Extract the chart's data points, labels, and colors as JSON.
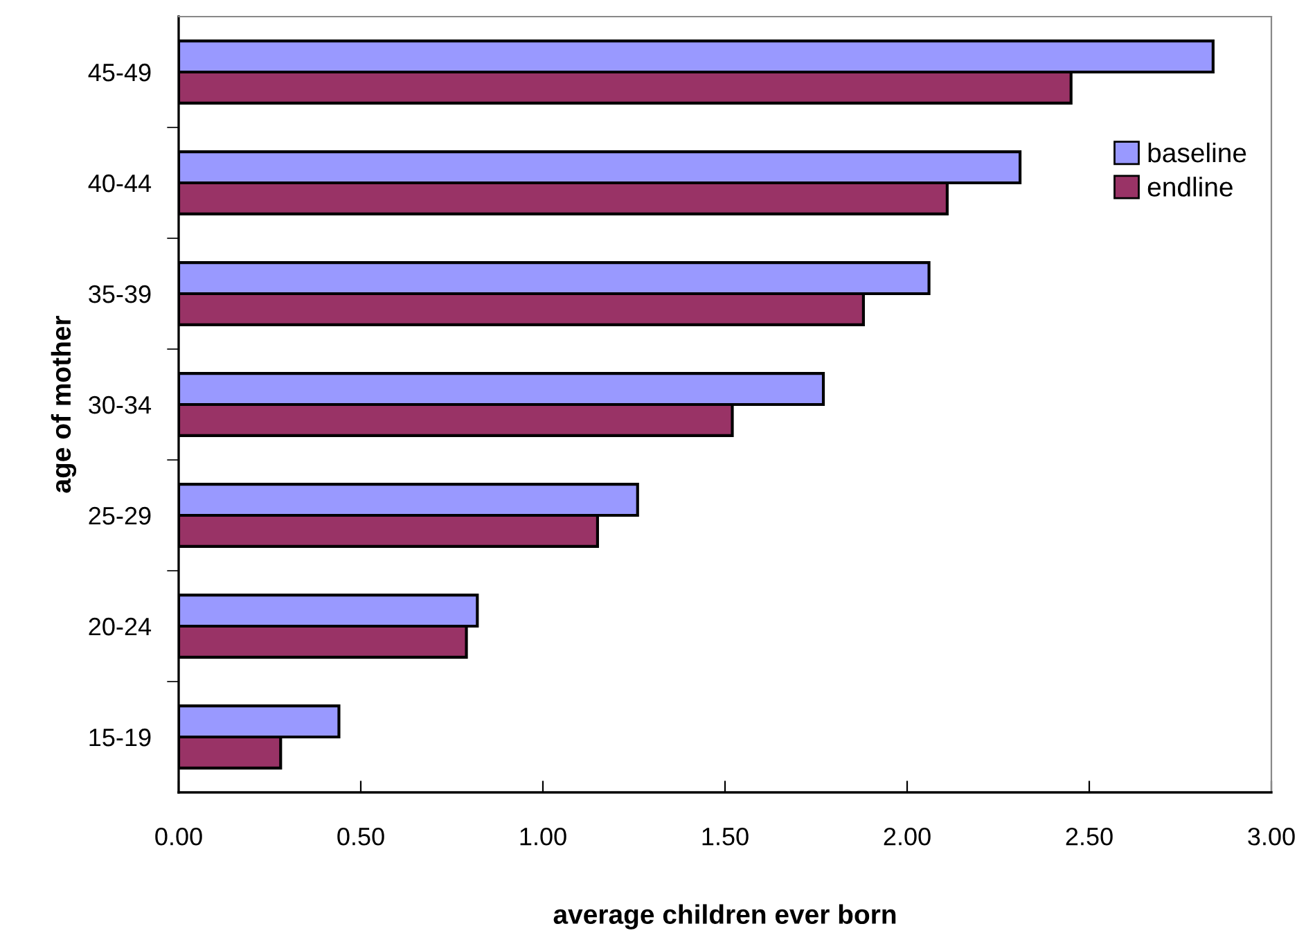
{
  "chart_data": {
    "type": "bar",
    "orientation": "horizontal",
    "xlabel": "average children ever born",
    "ylabel": "age of mother",
    "categories": [
      "45-49",
      "40-44",
      "35-39",
      "30-34",
      "25-29",
      "20-24",
      "15-19"
    ],
    "series": [
      {
        "name": "baseline",
        "color": "#9999ff",
        "values": [
          2.84,
          2.31,
          2.06,
          1.77,
          1.26,
          0.82,
          0.44
        ]
      },
      {
        "name": "endline",
        "color": "#993366",
        "values": [
          2.45,
          2.11,
          1.88,
          1.52,
          1.15,
          0.79,
          0.28
        ]
      }
    ],
    "xlim": [
      0,
      3
    ],
    "xticks": [
      {
        "value": 0,
        "label": "0.00"
      },
      {
        "value": 0.5,
        "label": "0.50"
      },
      {
        "value": 1,
        "label": "1.00"
      },
      {
        "value": 1.5,
        "label": "1.50"
      },
      {
        "value": 2,
        "label": "2.00"
      },
      {
        "value": 2.5,
        "label": "2.50"
      },
      {
        "value": 3,
        "label": "3.00"
      }
    ],
    "grid": false,
    "legend": "right"
  }
}
